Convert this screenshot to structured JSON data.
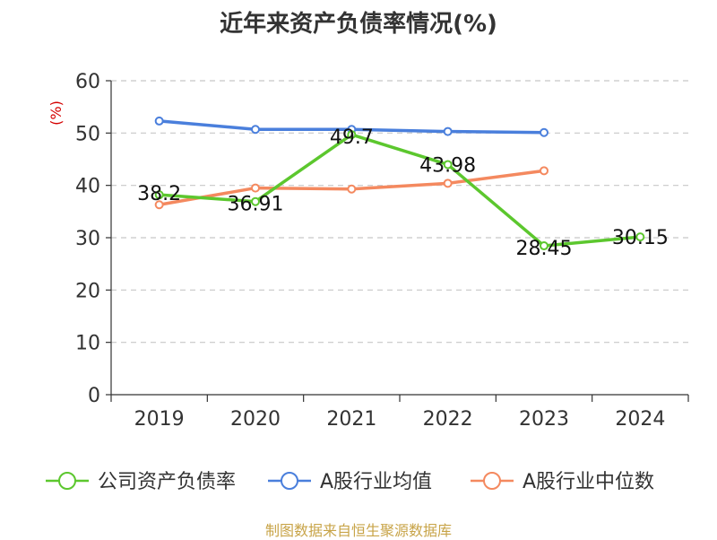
{
  "chart_data": {
    "type": "line",
    "title": "近年来资产负债率情况(%)",
    "ylabel": "(%)",
    "xlabel": "",
    "categories": [
      "2019",
      "2020",
      "2021",
      "2022",
      "2023",
      "2024"
    ],
    "ylim": [
      0,
      60
    ],
    "yticks": [
      0,
      10,
      20,
      30,
      40,
      50,
      60
    ],
    "grid": true,
    "legend_position": "bottom",
    "series": [
      {
        "name": "公司资产负债率",
        "color": "#5cc72e",
        "values": [
          38.2,
          36.91,
          49.7,
          43.98,
          28.45,
          30.15
        ],
        "labels": [
          "38.2",
          "36.91",
          "49.7",
          "43.98",
          "28.45",
          "30.15"
        ]
      },
      {
        "name": "A股行业均值",
        "color": "#4a7fdc",
        "values": [
          52.3,
          50.7,
          50.7,
          50.3,
          50.1,
          null
        ]
      },
      {
        "name": "A股行业中位数",
        "color": "#f4895f",
        "values": [
          36.3,
          39.5,
          39.3,
          40.4,
          42.8,
          null
        ]
      }
    ]
  },
  "source": "制图数据来自恒生聚源数据库"
}
